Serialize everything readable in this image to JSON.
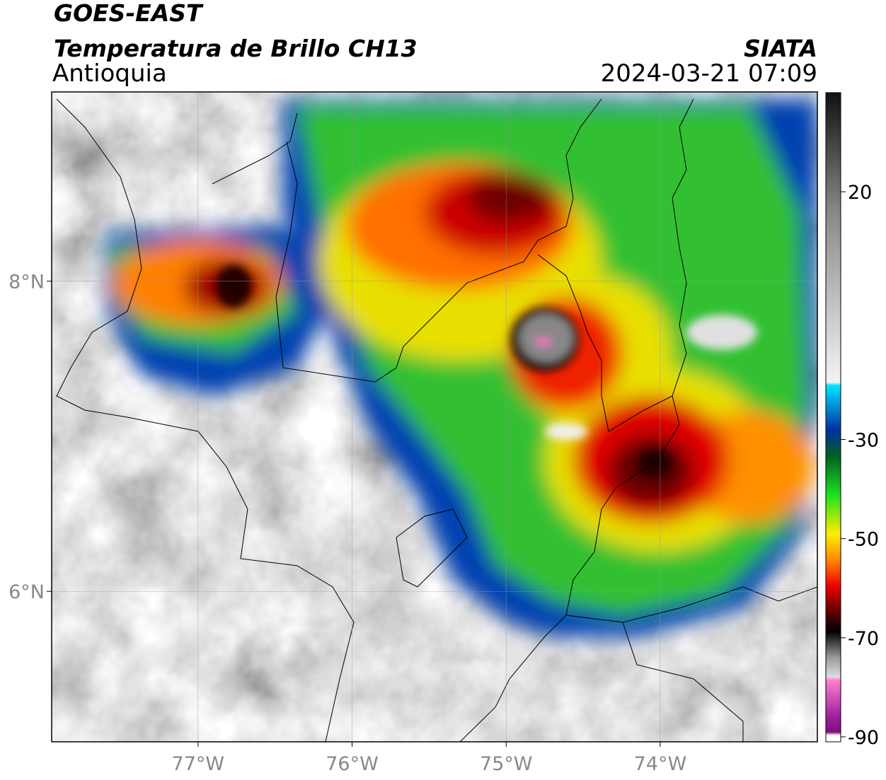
{
  "header": {
    "title": "GOES-EAST",
    "subtitle": "Temperatura de Brillo CH13",
    "region": "Antioquia",
    "source": "SIATA",
    "datetime": "2024-03-21 07:09"
  },
  "map": {
    "xlim": [
      -77.95,
      -72.98
    ],
    "ylim": [
      5.03,
      9.22
    ],
    "xticks": [
      {
        "value": -77,
        "label": "77°W"
      },
      {
        "value": -76,
        "label": "76°W"
      },
      {
        "value": -75,
        "label": "75°W"
      },
      {
        "value": -74,
        "label": "74°W"
      }
    ],
    "yticks": [
      {
        "value": 8,
        "label": "8°N"
      },
      {
        "value": 6,
        "label": "6°N"
      }
    ],
    "grid": true
  },
  "colorbar": {
    "clim": [
      -91,
      40
    ],
    "ticks": [
      20,
      -30,
      -50,
      -70,
      -90
    ]
  }
}
